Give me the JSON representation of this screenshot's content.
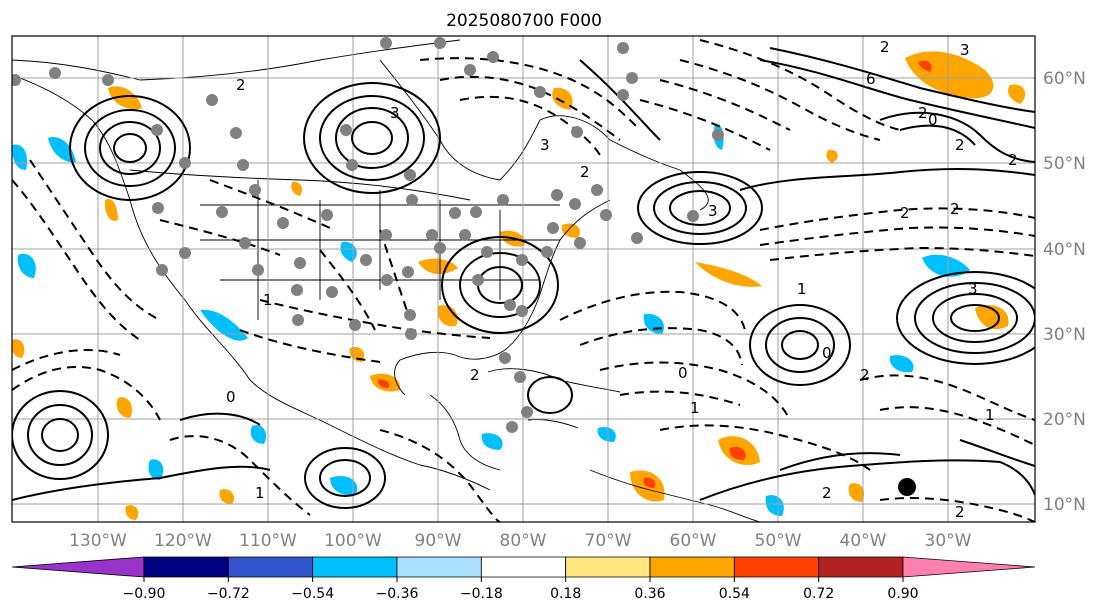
{
  "title": "2025080700 F000",
  "lon_labels": [
    "130°W",
    "120°W",
    "110°W",
    "100°W",
    "90°W",
    "80°W",
    "70°W",
    "60°W",
    "50°W",
    "40°W",
    "30°W"
  ],
  "lat_labels": [
    "60°N",
    "50°N",
    "40°N",
    "30°N",
    "20°N",
    "10°N"
  ],
  "colorbar": {
    "tick_labels": [
      "−0.90",
      "−0.72",
      "−0.54",
      "−0.36",
      "−0.18",
      "0.18",
      "0.36",
      "0.54",
      "0.72",
      "0.90"
    ],
    "colors": [
      "#9933cc",
      "#000080",
      "#3355cc",
      "#00bfff",
      "#aadeff",
      "#ffffff",
      "#ffe680",
      "#ffa500",
      "#ff4000",
      "#b22222",
      "#ff80b0"
    ]
  },
  "contour_labels": [
    "2",
    "3",
    "2",
    "3",
    "2",
    "3",
    "2",
    "6",
    "2",
    "3",
    "2",
    "0",
    "2",
    "2",
    "1",
    "3",
    "0",
    "0",
    "1",
    "2",
    "1",
    "1",
    "0",
    "2",
    "2",
    "2",
    "1"
  ],
  "colors": {
    "frame": "#000000",
    "grid": "#a0a0a0",
    "axis_text": "#808080",
    "station": "#808080",
    "coast": "#000000"
  }
}
